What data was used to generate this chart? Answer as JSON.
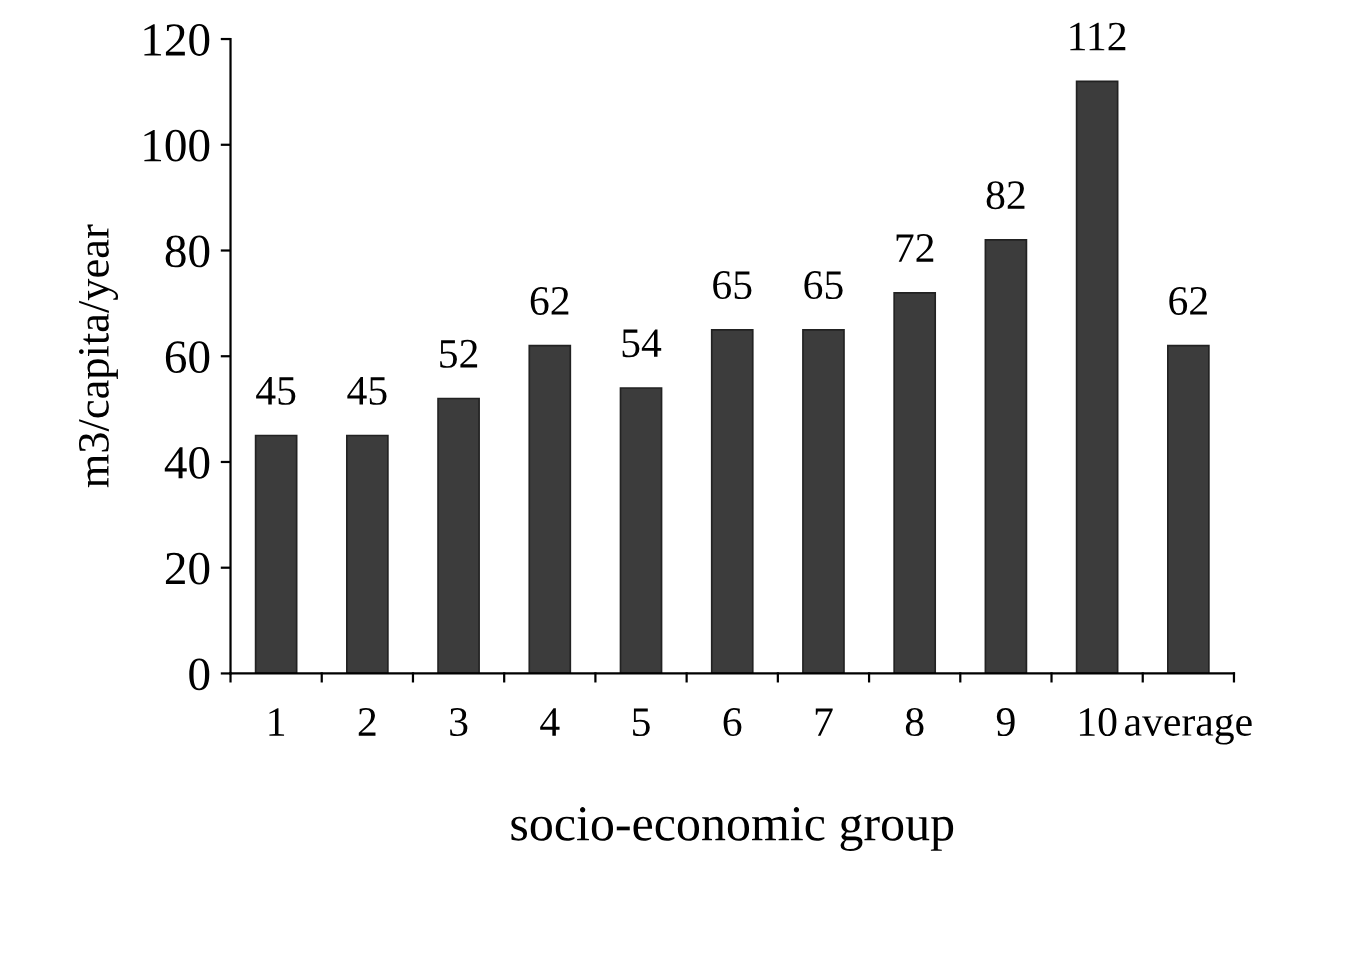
{
  "chart_data": {
    "type": "bar",
    "xlabel": "socio-economic group",
    "ylabel": "m3/capita/year",
    "categories": [
      "1",
      "2",
      "3",
      "4",
      "5",
      "6",
      "7",
      "8",
      "9",
      "10",
      "average"
    ],
    "values": [
      45,
      45,
      52,
      62,
      54,
      65,
      65,
      72,
      82,
      112,
      62
    ],
    "color": "#3c3c3c",
    "ylim": [
      0,
      120
    ],
    "yticks": [
      0,
      20,
      40,
      60,
      80,
      100,
      120
    ],
    "data_labels": true,
    "grid": false,
    "legend": false
  }
}
